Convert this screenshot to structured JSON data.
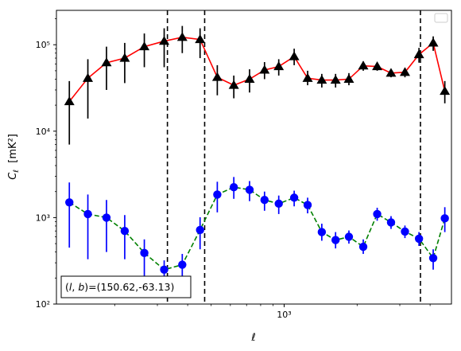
{
  "chart_data": {
    "type": "scatter",
    "xlabel": "ℓ",
    "ylabel": "C_ℓ [mK²]",
    "xscale": "log",
    "yscale": "log",
    "xlim": [
      115,
      4900
    ],
    "ylim": [
      100,
      250000
    ],
    "x_tick_labels": [
      {
        "value": 1000,
        "label": "10³"
      }
    ],
    "y_tick_labels": [
      {
        "value": 100,
        "label": "10²"
      },
      {
        "value": 1000,
        "label": "10³"
      },
      {
        "value": 10000,
        "label": "10⁴"
      },
      {
        "value": 100000,
        "label": "10⁵"
      }
    ],
    "grid": false,
    "legend": "top-right (empty box)",
    "annotation": "(l, b)=(150.62,-63.13)",
    "vlines": [
      330,
      470,
      3650
    ],
    "series": [
      {
        "marker": "triangle",
        "marker_color": "#000000",
        "line_color": "#ff0000",
        "line_style": "solid",
        "points": [
          {
            "x": 130,
            "y": 22000,
            "lo": 7000,
            "hi": 38000
          },
          {
            "x": 155,
            "y": 41000,
            "lo": 14000,
            "hi": 68000
          },
          {
            "x": 185,
            "y": 62000,
            "lo": 30000,
            "hi": 95000
          },
          {
            "x": 220,
            "y": 70000,
            "lo": 36000,
            "hi": 105000
          },
          {
            "x": 265,
            "y": 95000,
            "lo": 55000,
            "hi": 135000
          },
          {
            "x": 320,
            "y": 110000,
            "lo": 55000,
            "hi": 155000
          },
          {
            "x": 380,
            "y": 122000,
            "lo": 80000,
            "hi": 165000
          },
          {
            "x": 450,
            "y": 115000,
            "lo": 70000,
            "hi": 155000
          },
          {
            "x": 530,
            "y": 42000,
            "lo": 26000,
            "hi": 58000
          },
          {
            "x": 620,
            "y": 34000,
            "lo": 24000,
            "hi": 44000
          },
          {
            "x": 720,
            "y": 40000,
            "lo": 28000,
            "hi": 52000
          },
          {
            "x": 830,
            "y": 51000,
            "lo": 40000,
            "hi": 63000
          },
          {
            "x": 950,
            "y": 56000,
            "lo": 44000,
            "hi": 68000
          },
          {
            "x": 1100,
            "y": 73000,
            "lo": 58000,
            "hi": 90000
          },
          {
            "x": 1250,
            "y": 41000,
            "lo": 34000,
            "hi": 50000
          },
          {
            "x": 1430,
            "y": 39000,
            "lo": 32000,
            "hi": 46000
          },
          {
            "x": 1630,
            "y": 39000,
            "lo": 32000,
            "hi": 46000
          },
          {
            "x": 1850,
            "y": 40000,
            "lo": 34000,
            "hi": 47000
          },
          {
            "x": 2120,
            "y": 57000,
            "lo": 50000,
            "hi": 64000
          },
          {
            "x": 2420,
            "y": 56000,
            "lo": 50000,
            "hi": 62000
          },
          {
            "x": 2760,
            "y": 47000,
            "lo": 42000,
            "hi": 52000
          },
          {
            "x": 3150,
            "y": 48000,
            "lo": 42000,
            "hi": 54000
          },
          {
            "x": 3600,
            "y": 77000,
            "lo": 62000,
            "hi": 92000
          },
          {
            "x": 4120,
            "y": 105000,
            "lo": 85000,
            "hi": 125000
          },
          {
            "x": 4600,
            "y": 29000,
            "lo": 21000,
            "hi": 38000
          }
        ]
      },
      {
        "marker": "circle",
        "marker_color": "#0000ff",
        "line_color": "#008000",
        "line_style": "dashed",
        "points": [
          {
            "x": 130,
            "y": 1500,
            "lo": 450,
            "hi": 2550
          },
          {
            "x": 155,
            "y": 1100,
            "lo": 330,
            "hi": 1850
          },
          {
            "x": 185,
            "y": 1000,
            "lo": 400,
            "hi": 1600
          },
          {
            "x": 220,
            "y": 700,
            "lo": 330,
            "hi": 1070
          },
          {
            "x": 265,
            "y": 390,
            "lo": 200,
            "hi": 560
          },
          {
            "x": 320,
            "y": 250,
            "lo": 180,
            "hi": 320
          },
          {
            "x": 380,
            "y": 285,
            "lo": 200,
            "hi": 380
          },
          {
            "x": 450,
            "y": 720,
            "lo": 430,
            "hi": 1010
          },
          {
            "x": 530,
            "y": 1850,
            "lo": 1150,
            "hi": 2600
          },
          {
            "x": 620,
            "y": 2250,
            "lo": 1650,
            "hi": 2950
          },
          {
            "x": 720,
            "y": 2100,
            "lo": 1550,
            "hi": 2650
          },
          {
            "x": 830,
            "y": 1600,
            "lo": 1200,
            "hi": 2000
          },
          {
            "x": 950,
            "y": 1450,
            "lo": 1100,
            "hi": 1800
          },
          {
            "x": 1100,
            "y": 1700,
            "lo": 1350,
            "hi": 2050
          },
          {
            "x": 1250,
            "y": 1400,
            "lo": 1120,
            "hi": 1700
          },
          {
            "x": 1430,
            "y": 680,
            "lo": 540,
            "hi": 850
          },
          {
            "x": 1630,
            "y": 550,
            "lo": 440,
            "hi": 680
          },
          {
            "x": 1850,
            "y": 600,
            "lo": 500,
            "hi": 710
          },
          {
            "x": 2120,
            "y": 460,
            "lo": 380,
            "hi": 560
          },
          {
            "x": 2420,
            "y": 1100,
            "lo": 920,
            "hi": 1300
          },
          {
            "x": 2760,
            "y": 880,
            "lo": 740,
            "hi": 1040
          },
          {
            "x": 3150,
            "y": 690,
            "lo": 580,
            "hi": 810
          },
          {
            "x": 3600,
            "y": 570,
            "lo": 470,
            "hi": 680
          },
          {
            "x": 4120,
            "y": 340,
            "lo": 250,
            "hi": 430
          },
          {
            "x": 4600,
            "y": 980,
            "lo": 680,
            "hi": 1320
          }
        ]
      }
    ]
  }
}
